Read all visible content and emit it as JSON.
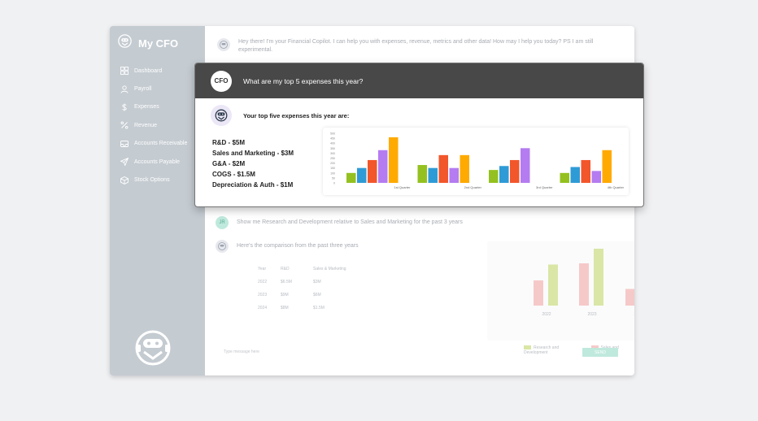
{
  "app": {
    "title": "My CFO"
  },
  "sidebar": {
    "items": [
      {
        "label": "Dashboard",
        "icon": "grid-icon"
      },
      {
        "label": "Payroll",
        "icon": "user-icon"
      },
      {
        "label": "Expenses",
        "icon": "dollar-icon"
      },
      {
        "label": "Revenue",
        "icon": "percent-icon"
      },
      {
        "label": "Accounts Receivable",
        "icon": "inbox-icon"
      },
      {
        "label": "Accounts Payable",
        "icon": "send-icon"
      },
      {
        "label": "Stock Options",
        "icon": "box-icon"
      }
    ]
  },
  "chat": {
    "greeting": "Hey there! I'm your Financial Copilot. I can help you with expenses, revenue, metrics and other data! How may I help you today? PS I am still experimental.",
    "user_initials": "JR",
    "user_message": "Show me Research and Development relative to Sales and Marketing for the past 3 years",
    "bot_reply": "Here's the comparison from the past three years",
    "table": {
      "headers": [
        "Year",
        "R&D",
        "Sales & Marketing"
      ],
      "rows": [
        [
          "2022",
          "$6.5M",
          "$3M"
        ],
        [
          "2023",
          "$9M",
          "$6M"
        ],
        [
          "2024",
          "$8M",
          "$1.5M"
        ]
      ]
    },
    "input_placeholder": "Type message here",
    "send_label": "SEND"
  },
  "popup": {
    "badge": "CFO",
    "question": "What are my top 5 expenses this year?",
    "answer_title": "Your top five expenses this year are:",
    "expenses": [
      "R&D - $5M",
      "Sales and Marketing - $3M",
      "G&A - $2M",
      "COGS - $1.5M",
      "Depreciation & Auth - $1M"
    ]
  },
  "colors": {
    "sidebar": "#c4cbd1",
    "header": "#484848",
    "bar_palette": [
      "#94c11f",
      "#2f9bd6",
      "#f2562b",
      "#b47cf0",
      "#ffaa00"
    ],
    "rd_faded": "#d9e6a6",
    "sm_faded": "#f6c9c9",
    "send": "#bfe9dc"
  },
  "chart_data": [
    {
      "type": "bar",
      "categories": [
        "1st Quarter",
        "2nd Quarter",
        "3rd Quarter",
        "4th Quarter"
      ],
      "series": [
        {
          "values": [
            100,
            180,
            130,
            100
          ]
        },
        {
          "values": [
            150,
            150,
            170,
            160
          ]
        },
        {
          "values": [
            230,
            280,
            230,
            230
          ]
        },
        {
          "values": [
            330,
            150,
            350,
            120
          ]
        },
        {
          "values": [
            460,
            280,
            0,
            330
          ]
        }
      ],
      "yticks": [
        "0",
        "50",
        "100",
        "150",
        "200",
        "250",
        "300",
        "350",
        "400",
        "450",
        "500"
      ],
      "ylim": [
        0,
        500
      ],
      "legend": "none",
      "grid": false
    },
    {
      "type": "bar",
      "categories": [
        "2022",
        "2023",
        "2024"
      ],
      "series": [
        {
          "name": "Research and Development",
          "values": [
            6.5,
            9,
            8
          ]
        },
        {
          "name": "Sales and Marketing",
          "values": [
            3,
            6,
            1.5
          ]
        }
      ],
      "ylim": [
        0,
        9
      ],
      "legend": "bottom",
      "grid": false
    }
  ]
}
